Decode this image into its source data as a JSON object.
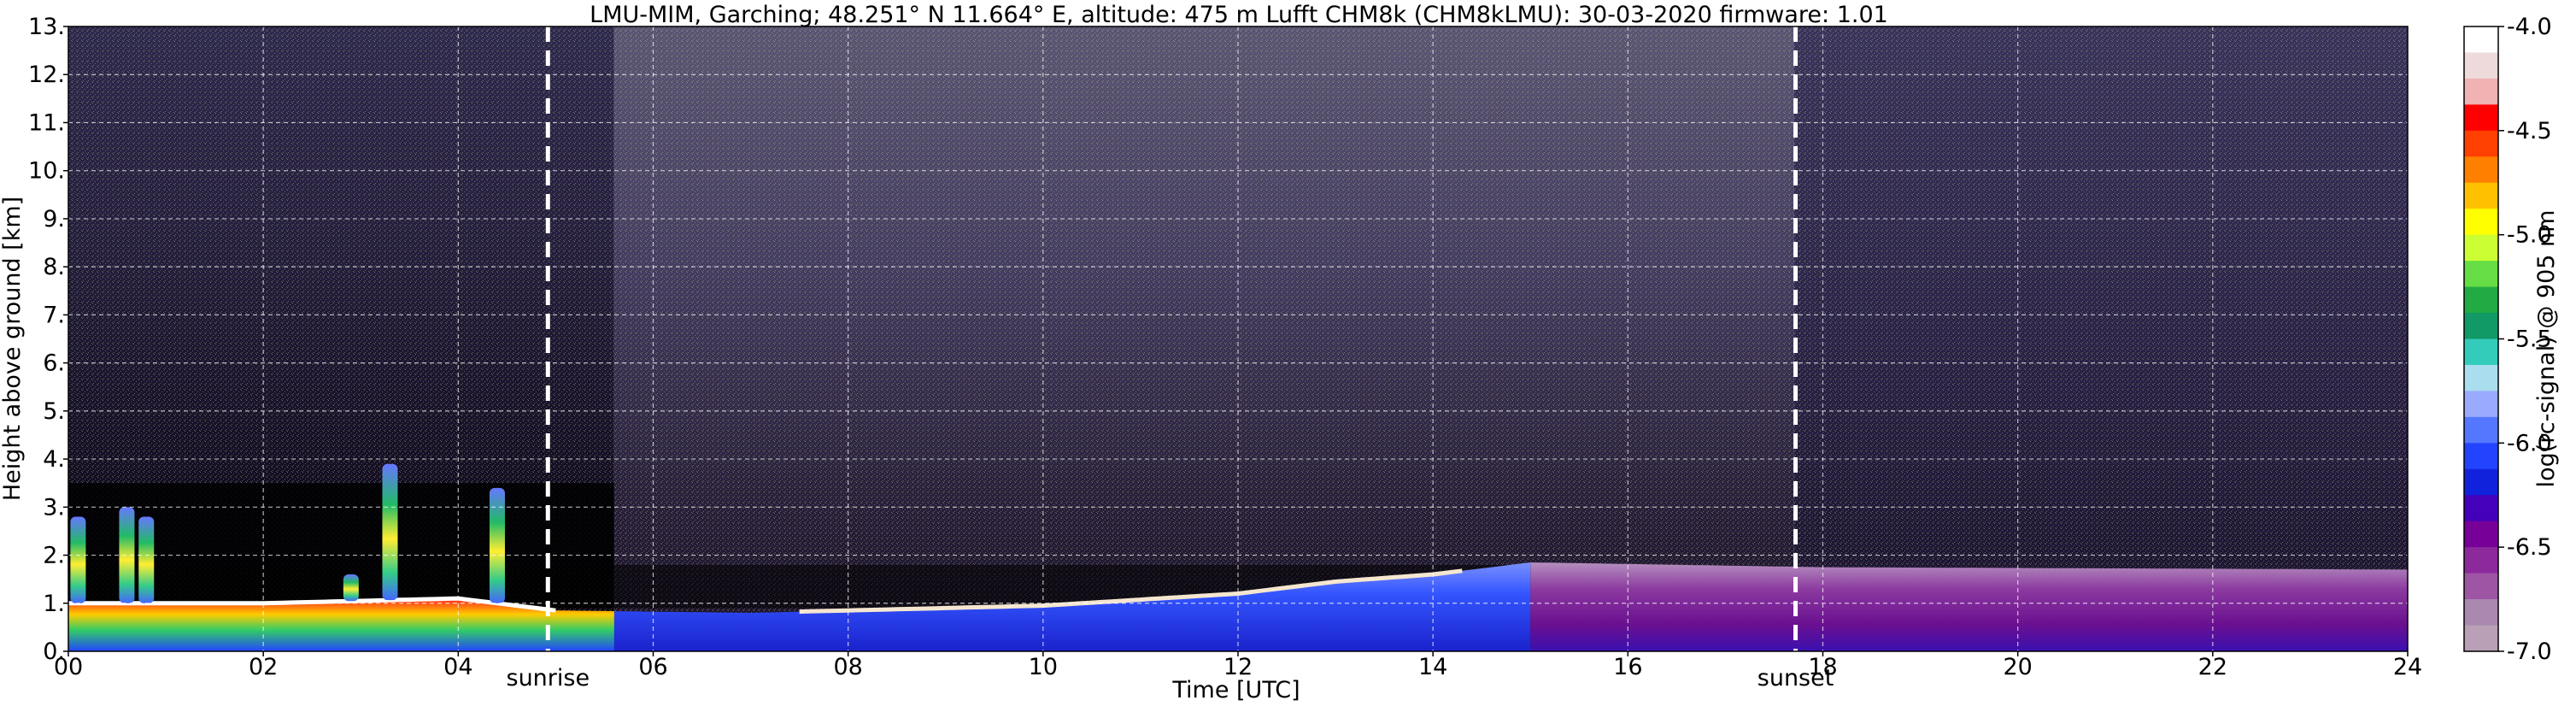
{
  "chart_data": {
    "type": "heatmap",
    "title": "LMU-MIM, Garching; 48.251° N 11.664° E, altitude: 475 m    Lufft CHM8k (CHM8kLMU): 30-03-2020    firmware: 1.01",
    "xlabel": "Time [UTC]",
    "ylabel": "Height above ground [km]",
    "xlim": [
      0,
      24
    ],
    "ylim": [
      0,
      13
    ],
    "x_tick_labels": [
      "00",
      "02",
      "04",
      "06",
      "08",
      "10",
      "12",
      "14",
      "16",
      "18",
      "20",
      "22",
      "24"
    ],
    "y_tick_labels": [
      "0.",
      "1.",
      "2.",
      "3.",
      "4.",
      "5.",
      "6.",
      "7.",
      "8.",
      "9.",
      "10.",
      "11.",
      "12.",
      "13."
    ],
    "grid": true,
    "markers": [
      {
        "label": "sunrise",
        "time": 4.92
      },
      {
        "label": "sunset",
        "time": 17.72
      }
    ],
    "colorbar": {
      "label": "log(rc-signal) @ 905 nm",
      "range": [
        -7.0,
        -4.0
      ],
      "tick_labels": [
        "-4.0",
        "-4.5",
        "-5.0",
        "-5.5",
        "-6.0",
        "-6.5",
        "-7.0"
      ],
      "colors": [
        "#ffffff",
        "#eedada",
        "#f0b2b2",
        "#ff0000",
        "#ff4000",
        "#ff8000",
        "#ffc000",
        "#ffff00",
        "#ccff33",
        "#66dd44",
        "#22aa44",
        "#119966",
        "#33ccbb",
        "#aaddee",
        "#99aaff",
        "#5577ff",
        "#2244ff",
        "#1122dd",
        "#4400bb",
        "#770099",
        "#8c2a9c",
        "#9e55a4",
        "#aa88ae",
        "#b9a0b6"
      ]
    },
    "features": {
      "boundary_layer_top_km": [
        {
          "t": 0,
          "h": 1.0
        },
        {
          "t": 2,
          "h": 1.0
        },
        {
          "t": 4,
          "h": 1.1
        },
        {
          "t": 5,
          "h": 0.85
        },
        {
          "t": 7,
          "h": 0.8
        },
        {
          "t": 8,
          "h": 0.85
        },
        {
          "t": 10,
          "h": 0.95
        },
        {
          "t": 12,
          "h": 1.2
        },
        {
          "t": 13,
          "h": 1.45
        },
        {
          "t": 14,
          "h": 1.6
        },
        {
          "t": 15,
          "h": 1.85
        },
        {
          "t": 18,
          "h": 1.75
        },
        {
          "t": 24,
          "h": 1.7
        }
      ],
      "cloud_columns": [
        {
          "t": 0.1,
          "top_km": 2.8
        },
        {
          "t": 0.6,
          "top_km": 3.0
        },
        {
          "t": 0.8,
          "top_km": 2.8
        },
        {
          "t": 3.3,
          "top_km": 3.9
        },
        {
          "t": 4.4,
          "top_km": 3.4
        },
        {
          "t": 2.9,
          "top_km": 1.6
        }
      ]
    }
  }
}
